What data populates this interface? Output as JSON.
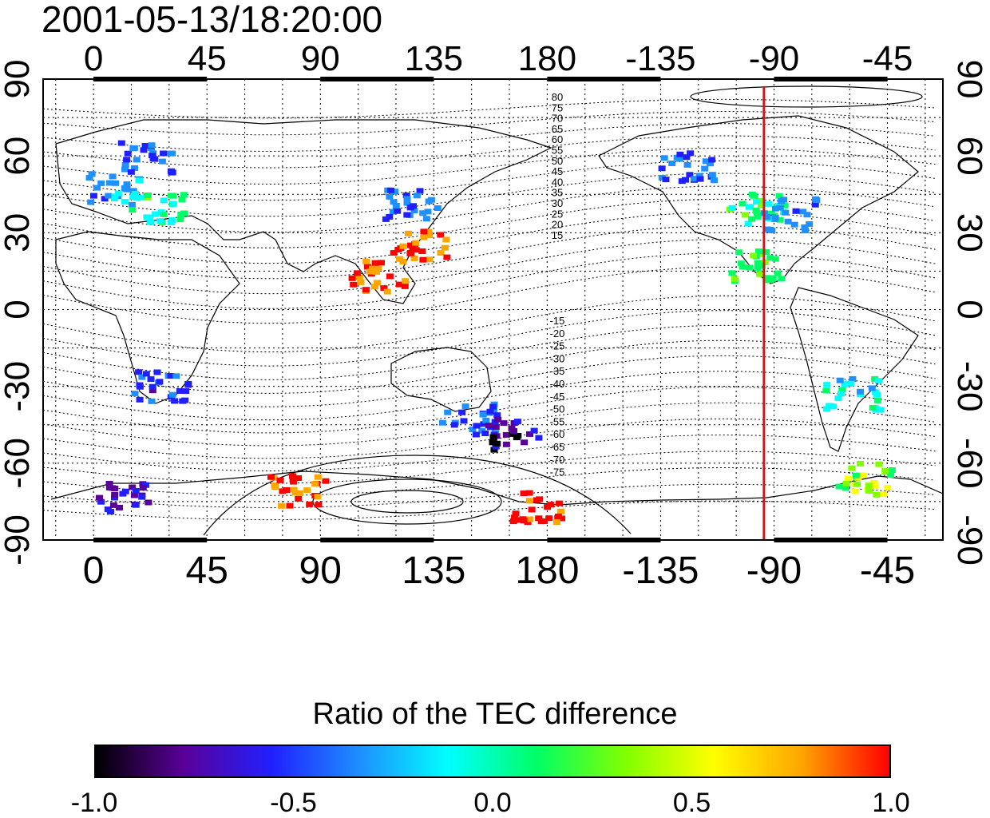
{
  "timestamp": "2001-05-13/18:20:00",
  "map": {
    "lon_ticks": [
      "0",
      "45",
      "90",
      "135",
      "180",
      "-135",
      "-90",
      "-45"
    ],
    "lon_tick_values": [
      0,
      45,
      90,
      135,
      180,
      225,
      270,
      315
    ],
    "lon_range": [
      -20,
      337
    ],
    "lat_ticks": [
      "90",
      "60",
      "30",
      "0",
      "-30",
      "-60",
      "-90"
    ],
    "lat_tick_values": [
      90,
      60,
      30,
      0,
      -30,
      -60,
      -90
    ],
    "lat_range": [
      -90,
      90
    ],
    "grid": "dotted, every 15 degrees",
    "meridian_marker": {
      "lon": -94,
      "color": "#dd1111"
    },
    "contour_labels_north": [
      "80",
      "75",
      "70",
      "65",
      "60",
      "55",
      "50",
      "45",
      "40",
      "35",
      "30",
      "25",
      "20",
      "15"
    ],
    "contour_labels_south": [
      "-15",
      "-20",
      "-25",
      "-30",
      "-35",
      "-40",
      "-45",
      "-50",
      "-55",
      "-60",
      "-65",
      "-70",
      "-75"
    ]
  },
  "colorbar": {
    "title": "Ratio of the TEC difference",
    "tick_labels": [
      "-1.0",
      "-0.5",
      "0.0",
      "0.5",
      "1.0"
    ],
    "range": [
      -1.0,
      1.0
    ],
    "colors": [
      "#000000",
      "#5a0099",
      "#2020ff",
      "#1e90ff",
      "#00ffff",
      "#00ff66",
      "#80ff00",
      "#ffff00",
      "#ffa500",
      "#ff0000"
    ]
  },
  "tec_regions": [
    {
      "lon": 20,
      "lat": 60,
      "value": -0.45
    },
    {
      "lon": 8,
      "lat": 48,
      "value": -0.3
    },
    {
      "lon": 25,
      "lat": 40,
      "value": 0.05
    },
    {
      "lon": 125,
      "lat": 42,
      "value": -0.4
    },
    {
      "lon": 128,
      "lat": 26,
      "value": 0.95
    },
    {
      "lon": 112,
      "lat": 14,
      "value": 0.9
    },
    {
      "lon": 26,
      "lat": -29,
      "value": -0.55
    },
    {
      "lon": 148,
      "lat": -42,
      "value": -0.5
    },
    {
      "lon": 165,
      "lat": -48,
      "value": -0.8
    },
    {
      "lon": 235,
      "lat": 56,
      "value": -0.45
    },
    {
      "lon": 262,
      "lat": 40,
      "value": 0.1
    },
    {
      "lon": 275,
      "lat": 38,
      "value": -0.35
    },
    {
      "lon": 263,
      "lat": 18,
      "value": 0.15
    },
    {
      "lon": 300,
      "lat": -32,
      "value": -0.15
    },
    {
      "lon": 305,
      "lat": -65,
      "value": 0.35
    },
    {
      "lon": 175,
      "lat": -76,
      "value": 1.0
    },
    {
      "lon": 80,
      "lat": -70,
      "value": 0.9
    },
    {
      "lon": 10,
      "lat": -73,
      "value": -0.7
    }
  ]
}
